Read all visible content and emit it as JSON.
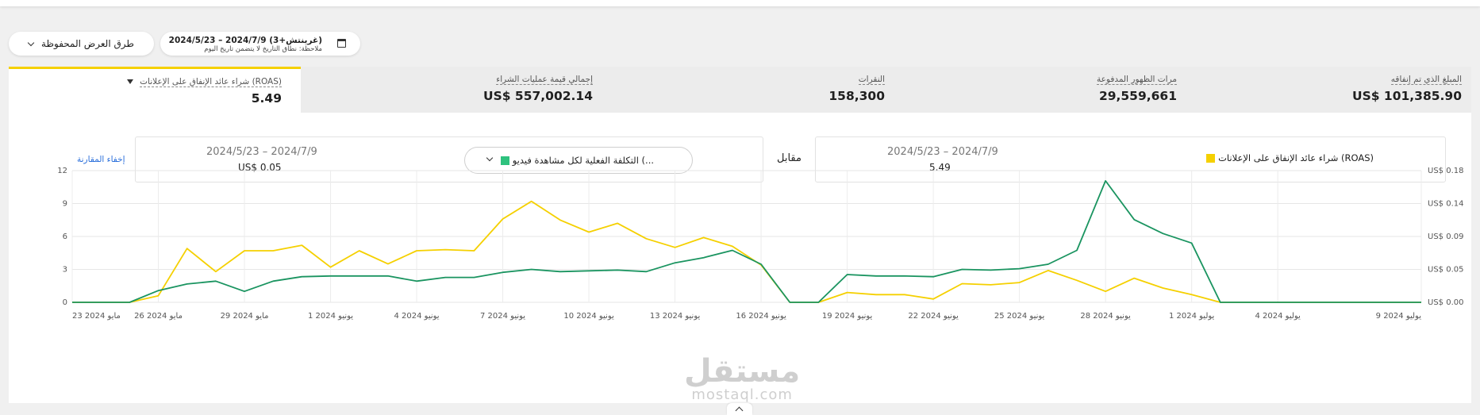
{
  "toolbar": {
    "saved_views_label": "طرق العرض المحفوظة",
    "date_range_label": "2024/5/23 – 2024/7/9 (غرينتش+3)",
    "date_note": "ملاحظة: نطاق التاريخ لا يتضمن تاريخ اليوم"
  },
  "metrics": [
    {
      "label": "المبلغ الذي تم إنفاقه",
      "value": "US$ 101,385.90"
    },
    {
      "label": "مرات الظهور المدفوعة",
      "value": "29,559,661"
    },
    {
      "label": "النقرات",
      "value": "158,300"
    },
    {
      "label": "إجمالي قيمة عمليات الشراء",
      "value": "US$ 557,002.14"
    },
    {
      "label": "شراء عائد الإنفاق على الإعلانات (ROAS)",
      "value": "5.49"
    }
  ],
  "comparison": {
    "primary": {
      "metric_name": "شراء عائد الإنفاق على الإعلانات (ROAS)",
      "date_range": "2024/5/23 – 2024/7/9",
      "value": "5.49",
      "color": "#f5d000"
    },
    "versus_label": "مقابل",
    "secondary": {
      "metric_name": "التكلفة الفعلية لكل مشاهدة فيديو (...",
      "date_range": "2024/5/23 – 2024/7/9",
      "value": "US$ 0.05",
      "color": "#2ec27e"
    },
    "hide_compare_label": "إخفاء المقارنة"
  },
  "chart_data": {
    "type": "line",
    "x": [
      "23 مايو 2024",
      "24",
      "25",
      "26 مايو 2024",
      "27",
      "28",
      "29 مايو 2024",
      "30",
      "31",
      "1 يونيو 2024",
      "2",
      "3",
      "4 يونيو 2024",
      "5",
      "6",
      "7 يونيو 2024",
      "8",
      "9",
      "10 يونيو 2024",
      "11",
      "12",
      "13 يونيو 2024",
      "14",
      "15",
      "16 يونيو 2024",
      "17",
      "18",
      "19 يونيو 2024",
      "20",
      "21",
      "22 يونيو 2024",
      "23",
      "24",
      "25 يونيو 2024",
      "26",
      "27",
      "28 يونيو 2024",
      "29",
      "30",
      "1 يوليو 2024",
      "2",
      "3",
      "4 يوليو 2024",
      "5",
      "6",
      "7",
      "8",
      "9 يوليو 2024"
    ],
    "x_tick_labels": [
      "23 مايو 2024",
      "26 مايو 2024",
      "29 مايو 2024",
      "1 يونيو 2024",
      "4 يونيو 2024",
      "7 يونيو 2024",
      "10 يونيو 2024",
      "13 يونيو 2024",
      "16 يونيو 2024",
      "19 يونيو 2024",
      "22 يونيو 2024",
      "25 يونيو 2024",
      "28 يونيو 2024",
      "1 يوليو 2024",
      "4 يوليو 2024",
      "9 يوليو 2024"
    ],
    "x_tick_index": [
      0,
      3,
      6,
      9,
      12,
      15,
      18,
      21,
      24,
      27,
      30,
      33,
      36,
      39,
      42,
      47
    ],
    "left_axis": {
      "ticks": [
        "0",
        "3",
        "6",
        "9",
        "12"
      ],
      "ylim": [
        0,
        12
      ]
    },
    "right_axis": {
      "ticks": [
        "US$ 0.00",
        "US$ 0.05",
        "US$ 0.09",
        "US$ 0.14",
        "US$ 0.18"
      ],
      "ylim": [
        0,
        0.18
      ]
    },
    "series": [
      {
        "name": "شراء عائد الإنفاق على الإعلانات (ROAS)",
        "axis": "left",
        "color": "#f5d000",
        "values": [
          0,
          0,
          0,
          0.6,
          4.9,
          2.8,
          4.7,
          4.7,
          5.2,
          3.2,
          4.7,
          3.5,
          4.7,
          4.8,
          4.7,
          7.6,
          9.2,
          7.5,
          6.4,
          7.2,
          5.8,
          5.0,
          5.9,
          5.1,
          3.4,
          0,
          0,
          0.9,
          0.7,
          0.7,
          0.3,
          1.7,
          1.6,
          1.8,
          2.9,
          2.0,
          1.0,
          2.2,
          1.3,
          0.7,
          0,
          0,
          0,
          0,
          0,
          0,
          0,
          0
        ]
      },
      {
        "name": "التكلفة الفعلية لكل مشاهدة فيديو (...",
        "axis": "right",
        "color": "#1a9460",
        "values": [
          0,
          0,
          0,
          0.016,
          0.025,
          0.029,
          0.015,
          0.029,
          0.035,
          0.036,
          0.036,
          0.036,
          0.029,
          0.034,
          0.034,
          0.041,
          0.045,
          0.042,
          0.043,
          0.044,
          0.042,
          0.054,
          0.061,
          0.071,
          0.052,
          0,
          0,
          0.038,
          0.036,
          0.036,
          0.035,
          0.045,
          0.044,
          0.046,
          0.052,
          0.071,
          0.166,
          0.113,
          0.094,
          0.081,
          0,
          0,
          0,
          0,
          0,
          0,
          0,
          0
        ]
      }
    ]
  },
  "watermark": {
    "arabic": "مستقل",
    "latin": "mostaql.com"
  }
}
